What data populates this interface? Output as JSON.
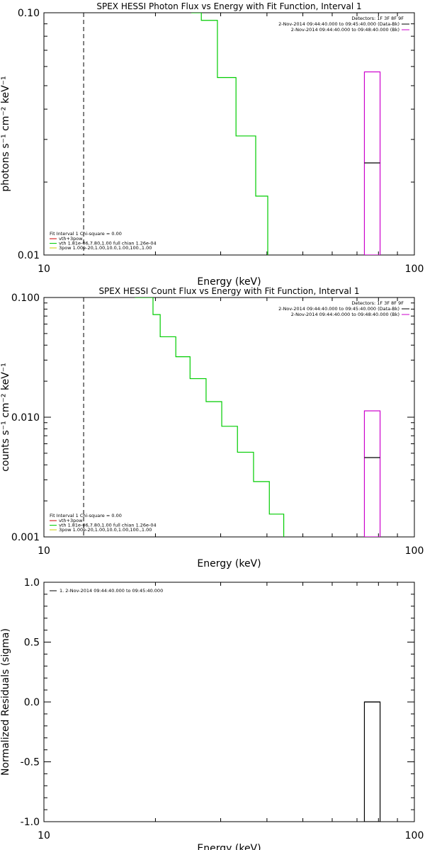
{
  "chart_data": [
    {
      "type": "line",
      "title": "SPEX HESSI Photon Flux vs Energy with Fit Function, Interval 1",
      "xlabel": "Energy (keV)",
      "ylabel": "photons s⁻¹ cm⁻² keV⁻¹",
      "x_scale": "log",
      "y_scale": "log",
      "xlim": [
        10,
        100
      ],
      "ylim": [
        0.01,
        0.1
      ],
      "x_ticks": [
        {
          "value": 10,
          "label": "10"
        },
        {
          "value": 100,
          "label": "100"
        }
      ],
      "y_ticks": [
        {
          "value": 0.01,
          "label": "0.01"
        },
        {
          "value": 0.1,
          "label": "0.10"
        }
      ],
      "legend_right": {
        "placement": "top-right",
        "header": "Detectors: 1F 3F 8F 9F",
        "entries": [
          {
            "label": "2-Nov-2014 09:44:40.000 to 09:45:40.000 (Data-Bk)",
            "color": "#000000"
          },
          {
            "label": "2-Nov-2014 09:44:40.000 to 09:48:40.000 (Bk)",
            "color": "#cc00cc"
          }
        ]
      },
      "legend_left": {
        "placement": "bottom-left",
        "header": "Fit Interval 1    Chi-square = 0.00",
        "entries": [
          {
            "label": "vth+3pow",
            "color": "#cc0000"
          },
          {
            "label": "vth 1.81e-06,7.80,1.00  full chian 1.26e-04",
            "color": "#00cc00"
          },
          {
            "label": "3pow 1.00e-20,1.00,10.0,1.00,100.,1.00",
            "color": "#cccc00"
          }
        ]
      },
      "dashed_line_x": 12.8,
      "series": [
        {
          "style": "step",
          "color": "#00cc00",
          "x": [
            25.0,
            26.6,
            29.4,
            33.0,
            37.3,
            40.2
          ],
          "y": [
            0.1,
            0.093,
            0.054,
            0.031,
            0.0175,
            0.01
          ]
        }
      ],
      "boxes": [
        {
          "x0": 73.3,
          "x1": 80.8,
          "y_low": 0.01,
          "y_high": 0.057,
          "value": 0.024,
          "color": "#cc00cc"
        }
      ]
    },
    {
      "type": "line",
      "title": "SPEX HESSI Count Flux vs Energy with Fit Function, Interval 1",
      "xlabel": "Energy (keV)",
      "ylabel": "counts s⁻¹ cm⁻² keV⁻¹",
      "x_scale": "log",
      "y_scale": "log",
      "xlim": [
        10,
        100
      ],
      "ylim": [
        0.001,
        0.1
      ],
      "x_ticks": [
        {
          "value": 10,
          "label": "10"
        },
        {
          "value": 100,
          "label": "100"
        }
      ],
      "y_ticks": [
        {
          "value": 0.001,
          "label": "0.001"
        },
        {
          "value": 0.01,
          "label": "0.010"
        },
        {
          "value": 0.1,
          "label": "0.100"
        }
      ],
      "legend_right": {
        "placement": "top-right",
        "header": "Detectors: 1F 3F 8F 9F",
        "entries": [
          {
            "label": "2-Nov-2014 09:44:40.000 to 09:45:40.000 (Data-Bk)",
            "color": "#000000"
          },
          {
            "label": "2-Nov-2014 09:44:40.000 to 09:48:40.000 (Bk)",
            "color": "#cc00cc"
          }
        ]
      },
      "legend_left": {
        "placement": "bottom-left",
        "header": "Fit Interval 1    Chi-square = 0.00",
        "entries": [
          {
            "label": "vth+3pow",
            "color": "#cc0000"
          },
          {
            "label": "vth 1.81e-06,7.80,1.00  full chian 1.26e-04",
            "color": "#00cc00"
          },
          {
            "label": "3pow 1.00e-20,1.00,10.0,1.00,100.,1.00",
            "color": "#cccc00"
          }
        ]
      },
      "dashed_line_x": 12.8,
      "series": [
        {
          "style": "step",
          "color": "#00cc00",
          "x": [
            17.6,
            19.7,
            20.6,
            22.7,
            24.8,
            27.4,
            30.2,
            33.3,
            36.8,
            40.6,
            44.4
          ],
          "y": [
            0.1,
            0.072,
            0.047,
            0.032,
            0.021,
            0.0135,
            0.0084,
            0.0051,
            0.0029,
            0.00155,
            0.001
          ]
        }
      ],
      "boxes": [
        {
          "x0": 73.3,
          "x1": 80.8,
          "y_low": 0.001,
          "y_high": 0.0113,
          "value": 0.0046,
          "color": "#cc00cc"
        }
      ]
    },
    {
      "type": "bar",
      "xlabel": "Energy (keV)",
      "ylabel": "Normalized Residuals (sigma)",
      "x_scale": "log",
      "y_scale": "linear",
      "xlim": [
        10,
        100
      ],
      "ylim": [
        -1.0,
        1.0
      ],
      "x_ticks": [
        {
          "value": 10,
          "label": "10"
        },
        {
          "value": 100,
          "label": "100"
        }
      ],
      "y_ticks": [
        {
          "value": 1.0,
          "label": "1.0"
        },
        {
          "value": 0.5,
          "label": "0.5"
        },
        {
          "value": 0.0,
          "label": "0.0"
        },
        {
          "value": -0.5,
          "label": "-0.5"
        },
        {
          "value": -1.0,
          "label": "-1.0"
        }
      ],
      "legend": {
        "placement": "top-left",
        "entries": [
          {
            "label": "1.  2-Nov-2014 09:44:40.000 to 09:45:40.000",
            "color": "#000000"
          }
        ]
      },
      "series": [],
      "boxes": [
        {
          "x0": 73.3,
          "x1": 80.8,
          "y_low": -1.0,
          "y_high": 0.0,
          "value": 0.0,
          "color": "#000000"
        }
      ]
    }
  ]
}
